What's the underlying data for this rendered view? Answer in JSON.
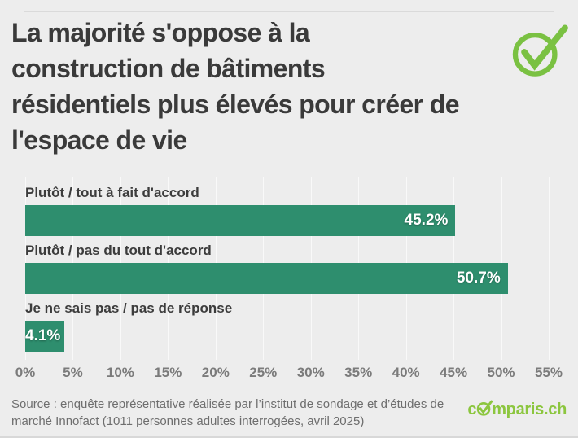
{
  "page": {
    "background_color": "#ededed",
    "title": "La majorité s'oppose à la\nconstruction de bâtiments\nrésidentiels plus élevés pour créer de\nl'espace de vie",
    "source_note": "Source : enquête représentative réalisée par l’institut de sondage et d’études de\nmarché Innofact (1011 personnes adultes interrogées, avril 2025)",
    "brand": {
      "check_logo_color": "#7ac142",
      "wordmark_full": "comparis.ch",
      "wordmark_prefix": "c",
      "wordmark_suffix": "mparis.ch",
      "wordmark_color": "#8cc63f"
    }
  },
  "chart_data": {
    "type": "bar",
    "orientation": "horizontal",
    "title": "La majorité s'oppose à la construction de bâtiments résidentiels plus élevés pour créer de l'espace de vie",
    "categories": [
      "Plutôt / tout à fait d'accord",
      "Plutôt / pas du tout d'accord",
      "Je ne sais pas / pas de réponse"
    ],
    "values": [
      45.2,
      50.7,
      4.1
    ],
    "value_labels": [
      "45.2%",
      "50.7%",
      "4.1%"
    ],
    "x_tick_labels": [
      "0%",
      "5%",
      "10%",
      "15%",
      "20%",
      "25%",
      "30%",
      "35%",
      "40%",
      "45%",
      "50%",
      "55%"
    ],
    "xlim": [
      0,
      55
    ],
    "grid": true,
    "legend": false,
    "bar_color": "#2e8e6e",
    "value_label_color": "#ffffff",
    "category_label_color": "#3c3c3c",
    "tick_label_color": "#7b7b7b",
    "xlabel": "",
    "ylabel": ""
  }
}
